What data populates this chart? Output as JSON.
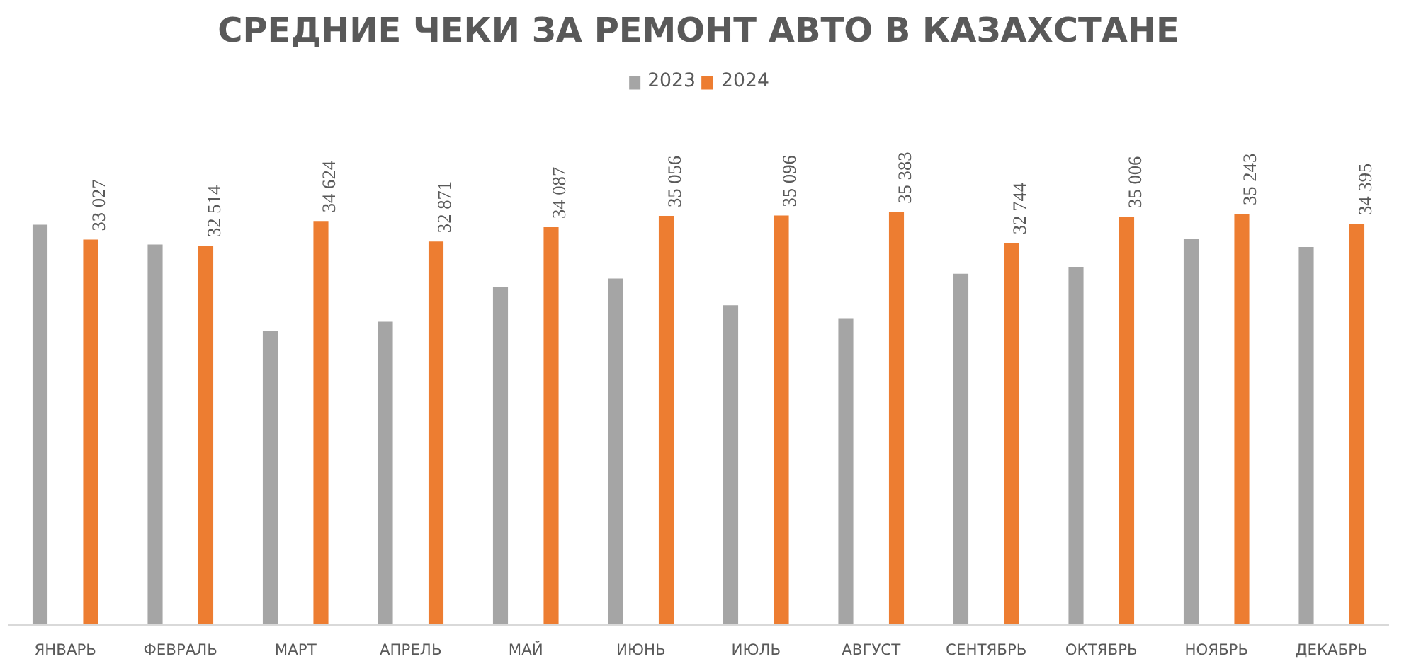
{
  "chart_data": {
    "type": "bar",
    "title": "СРЕДНИЕ ЧЕКИ ЗА РЕМОНТ АВТО В КАЗАХСТАНЕ",
    "categories": [
      "ЯНВАРЬ",
      "ФЕВРАЛЬ",
      "МАРТ",
      "АПРЕЛЬ",
      "МАЙ",
      "ИЮНЬ",
      "ИЮЛЬ",
      "АВГУСТ",
      "СЕНТЯБРЬ",
      "ОКТЯБРЬ",
      "НОЯБРЬ",
      "ДЕКАБРЬ"
    ],
    "series": [
      {
        "name": "2023",
        "color": "#a5a5a5",
        "values": [
          34300,
          32600,
          25200,
          26000,
          29000,
          29700,
          27400,
          26300,
          30100,
          30700,
          33100,
          32400
        ]
      },
      {
        "name": "2024",
        "color": "#ed7d31",
        "values": [
          33027,
          32514,
          34624,
          32871,
          34087,
          35056,
          35096,
          35383,
          32744,
          35006,
          35243,
          34395
        ],
        "value_labels": [
          "33 027",
          "32 514",
          "34 624",
          "32 871",
          "34 087",
          "35 056",
          "35 096",
          "35 383",
          "32 744",
          "35 006",
          "35 243",
          "34 395"
        ]
      }
    ],
    "tick_labels": "x",
    "grid": false,
    "legend": "top"
  }
}
